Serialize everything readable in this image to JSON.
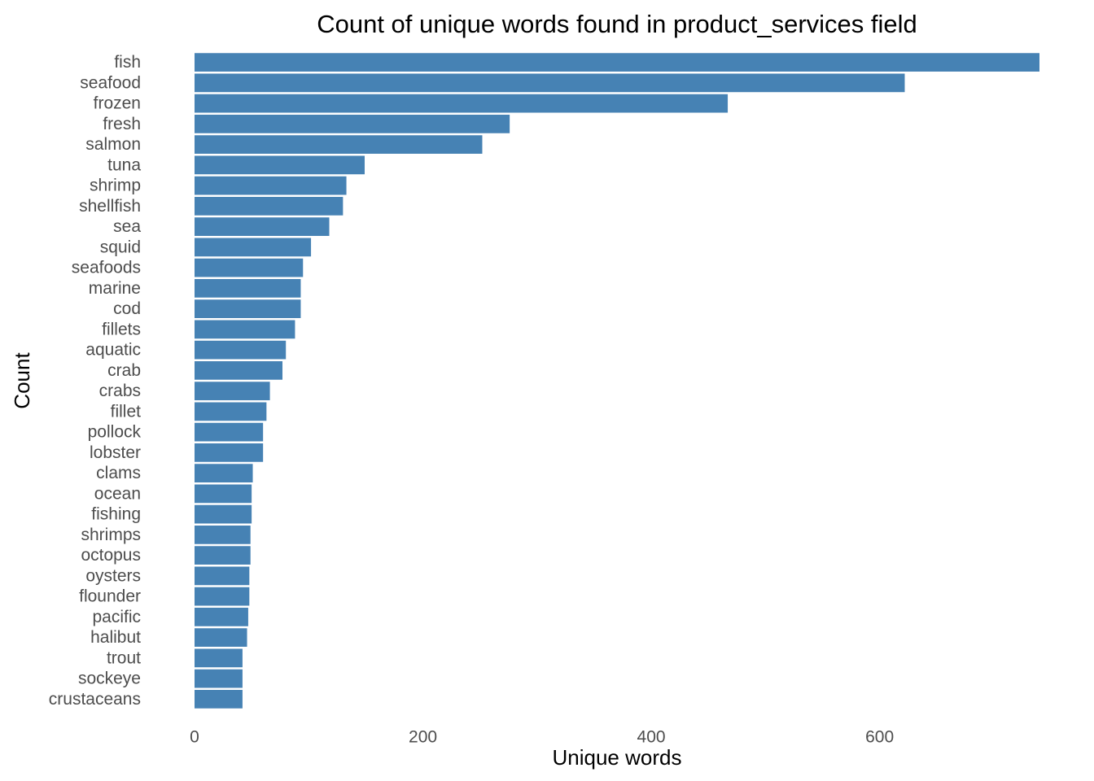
{
  "chart_data": {
    "type": "bar",
    "orientation": "horizontal",
    "title": "Count of unique words found in product_services field",
    "xlabel": "Unique words",
    "ylabel": "Count",
    "xlim": [
      0,
      740
    ],
    "xticks": [
      0,
      200,
      400,
      600
    ],
    "grid": false,
    "legend": "none",
    "bar_color": "#4682B4",
    "categories": [
      "fish",
      "seafood",
      "frozen",
      "fresh",
      "salmon",
      "tuna",
      "shrimp",
      "shellfish",
      "sea",
      "squid",
      "seafoods",
      "marine",
      "cod",
      "fillets",
      "aquatic",
      "crab",
      "crabs",
      "fillet",
      "pollock",
      "lobster",
      "clams",
      "ocean",
      "fishing",
      "shrimps",
      "octopus",
      "oysters",
      "flounder",
      "pacific",
      "halibut",
      "trout",
      "sockeye",
      "crustaceans"
    ],
    "values": [
      740,
      622,
      467,
      276,
      252,
      149,
      133,
      130,
      118,
      102,
      95,
      93,
      93,
      88,
      80,
      77,
      66,
      63,
      60,
      60,
      51,
      50,
      50,
      49,
      49,
      48,
      48,
      47,
      46,
      42,
      42,
      42
    ]
  }
}
